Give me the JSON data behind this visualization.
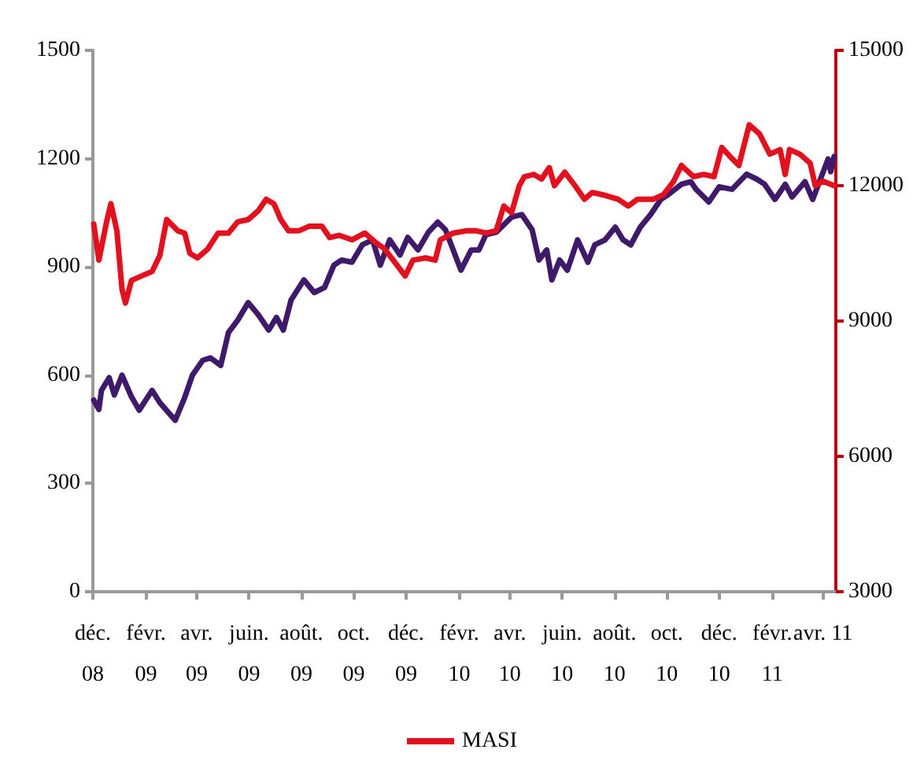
{
  "chart_data": {
    "type": "line",
    "xlim": [
      "2008-12-01",
      "2011-04-16"
    ],
    "xticks": [
      {
        "value": "2008-12-01",
        "label": "déc.\n08"
      },
      {
        "value": "2009-02-01",
        "label": "févr.\n09"
      },
      {
        "value": "2009-04-01",
        "label": "avr.\n09"
      },
      {
        "value": "2009-06-01",
        "label": "juin.\n09"
      },
      {
        "value": "2009-08-01",
        "label": "août.\n09"
      },
      {
        "value": "2009-10-01",
        "label": "oct.\n09"
      },
      {
        "value": "2009-12-01",
        "label": "déc.\n09"
      },
      {
        "value": "2010-02-01",
        "label": "févr.\n10"
      },
      {
        "value": "2010-04-01",
        "label": "avr.\n10"
      },
      {
        "value": "2010-06-01",
        "label": "juin.\n10"
      },
      {
        "value": "2010-08-01",
        "label": "août.\n10"
      },
      {
        "value": "2010-10-01",
        "label": "oct.\n10"
      },
      {
        "value": "2010-12-01",
        "label": "déc.\n10"
      },
      {
        "value": "2011-02-01",
        "label": "févr.\n11"
      },
      {
        "value": "2011-04-01",
        "label": "avr. 11"
      }
    ],
    "ylim": [
      0,
      1500
    ],
    "yticks": [
      0,
      300,
      600,
      900,
      1200,
      1500
    ],
    "y2lim": [
      3000,
      15000
    ],
    "y2ticks": [
      3000,
      6000,
      9000,
      12000,
      15000
    ],
    "grid": false,
    "legend": "bottom",
    "marker": "none",
    "line_style": "solid",
    "series": [
      {
        "color": "#3f1a6b",
        "x": [
          "2008-12-02",
          "2008-12-08",
          "2008-12-11",
          "2008-12-20",
          "2008-12-26",
          "2009-01-04",
          "2009-01-15",
          "2009-01-24",
          "2009-02-08",
          "2009-02-17",
          "2009-03-07",
          "2009-03-18",
          "2009-03-27",
          "2009-04-08",
          "2009-04-17",
          "2009-04-29",
          "2009-05-08",
          "2009-05-19",
          "2009-05-31",
          "2009-06-12",
          "2009-06-24",
          "2009-07-03",
          "2009-07-11",
          "2009-07-20",
          "2009-08-04",
          "2009-08-16",
          "2009-08-28",
          "2009-09-08",
          "2009-09-17",
          "2009-09-29",
          "2009-10-11",
          "2009-10-23",
          "2009-11-01",
          "2009-11-12",
          "2009-11-24",
          "2009-12-03",
          "2009-12-15",
          "2009-12-27",
          "2010-01-07",
          "2010-01-16",
          "2010-01-25",
          "2010-02-03",
          "2010-02-15",
          "2010-02-24",
          "2010-03-04",
          "2010-03-16",
          "2010-04-03",
          "2010-04-15",
          "2010-04-27",
          "2010-05-05",
          "2010-05-14",
          "2010-05-20",
          "2010-05-29",
          "2010-06-07",
          "2010-06-19",
          "2010-07-01",
          "2010-07-09",
          "2010-07-21",
          "2010-08-02",
          "2010-08-11",
          "2010-08-20",
          "2010-08-31",
          "2010-09-12",
          "2010-09-24",
          "2010-10-03",
          "2010-10-18",
          "2010-10-29",
          "2010-11-04",
          "2010-11-19",
          "2010-12-01",
          "2010-12-16",
          "2011-01-02",
          "2011-01-14",
          "2011-01-23",
          "2011-02-04",
          "2011-02-16",
          "2011-02-24",
          "2011-03-11",
          "2011-03-20",
          "2011-03-29",
          "2011-04-07",
          "2011-04-10",
          "2011-04-14"
        ],
        "values": [
          531,
          505,
          558,
          593,
          545,
          600,
          540,
          503,
          558,
          524,
          475,
          538,
          600,
          641,
          648,
          627,
          718,
          753,
          801,
          767,
          725,
          760,
          725,
          808,
          864,
          829,
          843,
          905,
          919,
          913,
          961,
          975,
          905,
          975,
          933,
          982,
          947,
          996,
          1024,
          1003,
          947,
          891,
          947,
          947,
          989,
          996,
          1038,
          1045,
          1003,
          919,
          947,
          864,
          919,
          891,
          975,
          913,
          961,
          975,
          1010,
          975,
          961,
          1010,
          1045,
          1087,
          1101,
          1129,
          1136,
          1115,
          1080,
          1122,
          1115,
          1157,
          1143,
          1129,
          1087,
          1129,
          1094,
          1136,
          1087,
          1143,
          1199,
          1164,
          1206
        ]
      },
      {
        "name": "MASI",
        "color": "#e3101e",
        "axis": "y2",
        "x": [
          "2008-12-02",
          "2008-12-08",
          "2008-12-17",
          "2008-12-22",
          "2008-12-29",
          "2009-01-04",
          "2009-01-08",
          "2009-01-15",
          "2009-01-27",
          "2009-02-08",
          "2009-02-17",
          "2009-02-25",
          "2009-03-10",
          "2009-03-18",
          "2009-03-24",
          "2009-04-02",
          "2009-04-14",
          "2009-04-26",
          "2009-05-08",
          "2009-05-19",
          "2009-05-31",
          "2009-06-12",
          "2009-06-21",
          "2009-06-30",
          "2009-07-08",
          "2009-07-17",
          "2009-07-29",
          "2009-08-10",
          "2009-08-25",
          "2009-09-03",
          "2009-09-14",
          "2009-09-29",
          "2009-10-14",
          "2009-10-26",
          "2009-11-06",
          "2009-11-18",
          "2009-11-30",
          "2009-12-09",
          "2009-12-24",
          "2010-01-04",
          "2010-01-10",
          "2010-01-25",
          "2010-02-09",
          "2010-02-21",
          "2010-03-04",
          "2010-03-16",
          "2010-03-25",
          "2010-04-03",
          "2010-04-12",
          "2010-04-18",
          "2010-04-29",
          "2010-05-08",
          "2010-05-17",
          "2010-05-23",
          "2010-06-04",
          "2010-06-16",
          "2010-06-27",
          "2010-07-06",
          "2010-07-18",
          "2010-08-05",
          "2010-08-17",
          "2010-08-28",
          "2010-09-15",
          "2010-09-27",
          "2010-10-09",
          "2010-10-18",
          "2010-11-01",
          "2010-11-13",
          "2010-11-25",
          "2010-12-04",
          "2010-12-16",
          "2010-12-24",
          "2011-01-05",
          "2011-01-17",
          "2011-01-29",
          "2011-02-10",
          "2011-02-16",
          "2011-02-21",
          "2011-03-05",
          "2011-03-17",
          "2011-03-23",
          "2011-04-01",
          "2011-04-14"
        ],
        "values": [
          11150,
          10350,
          11200,
          11600,
          11000,
          9700,
          9400,
          9900,
          10000,
          10100,
          10450,
          11250,
          11000,
          10950,
          10500,
          10400,
          10600,
          10950,
          10950,
          11200,
          11250,
          11450,
          11700,
          11600,
          11250,
          11000,
          11000,
          11100,
          11100,
          10850,
          10900,
          10800,
          10950,
          10750,
          10600,
          10300,
          10000,
          10350,
          10400,
          10350,
          10800,
          10950,
          11000,
          11000,
          10950,
          11000,
          11550,
          11400,
          12000,
          12200,
          12250,
          12150,
          12400,
          12000,
          12300,
          12000,
          11700,
          11850,
          11800,
          11700,
          11550,
          11700,
          11700,
          11800,
          12100,
          12450,
          12200,
          12250,
          12200,
          12850,
          12600,
          12450,
          13350,
          13150,
          12700,
          12800,
          12250,
          12800,
          12700,
          12500,
          12000,
          12100,
          12000
        ]
      }
    ]
  }
}
